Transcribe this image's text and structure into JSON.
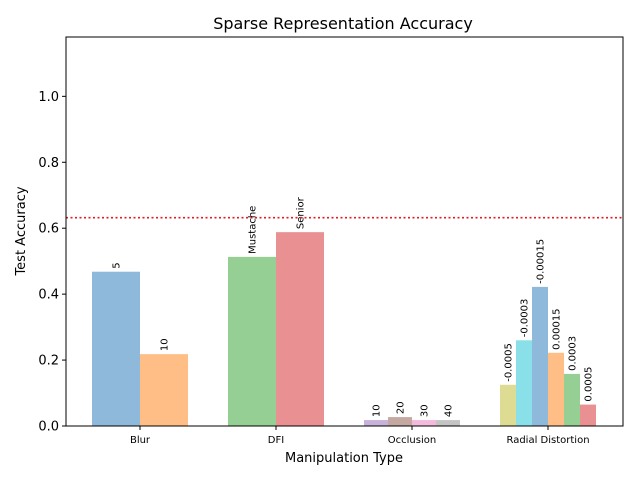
{
  "chart_data": {
    "type": "bar",
    "title": "Sparse Representation Accuracy",
    "xlabel": "Manipulation Type",
    "ylabel": "Test Accuracy",
    "ylim": [
      0,
      1.18
    ],
    "yticks": [
      "0.0",
      "0.2",
      "0.4",
      "0.6",
      "0.8",
      "1.0"
    ],
    "grid": false,
    "reference_line": {
      "value": 0.632,
      "style": "dotted",
      "color": "#e41a1c"
    },
    "groups": [
      {
        "category": "Blur",
        "bars": [
          {
            "label": "5",
            "value": 0.468,
            "color": "#8fb9da"
          },
          {
            "label": "10",
            "value": 0.218,
            "color": "#ffbe86"
          }
        ]
      },
      {
        "category": "DFI",
        "bars": [
          {
            "label": "Mustache",
            "value": 0.513,
            "color": "#96cf94"
          },
          {
            "label": "Senior",
            "value": 0.588,
            "color": "#e99192"
          }
        ]
      },
      {
        "category": "Occlusion",
        "bars": [
          {
            "label": "10",
            "value": 0.018,
            "color": "#c8b2d9"
          },
          {
            "label": "20",
            "value": 0.027,
            "color": "#c5a8a2"
          },
          {
            "label": "30",
            "value": 0.018,
            "color": "#f3badd"
          },
          {
            "label": "40",
            "value": 0.018,
            "color": "#c4c4c4"
          }
        ]
      },
      {
        "category": "Radial Distortion",
        "bars": [
          {
            "label": "-0.0005",
            "value": 0.125,
            "color": "#dedc92"
          },
          {
            "label": "-0.0003",
            "value": 0.26,
            "color": "#8ae0e8"
          },
          {
            "label": "-0.00015",
            "value": 0.422,
            "color": "#8fb9da"
          },
          {
            "label": "0.00015",
            "value": 0.222,
            "color": "#ffbe86"
          },
          {
            "label": "0.0003",
            "value": 0.158,
            "color": "#96cf94"
          },
          {
            "label": "0.0005",
            "value": 0.065,
            "color": "#e99192"
          }
        ]
      }
    ]
  }
}
